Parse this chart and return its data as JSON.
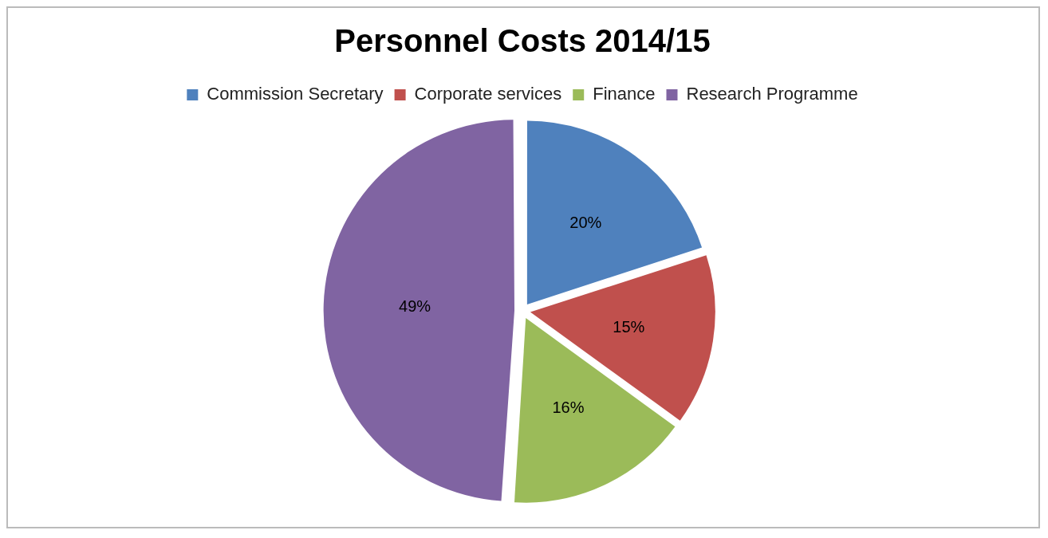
{
  "chart_data": {
    "type": "pie",
    "title": "Personnel Costs 2014/15",
    "categories": [
      "Commission Secretary",
      "Corporate services",
      "Finance",
      "Research Programme"
    ],
    "values": [
      20,
      15,
      16,
      49
    ],
    "colors": [
      "#4f81bd",
      "#c0504d",
      "#9bbb59",
      "#8064a2"
    ],
    "value_labels": [
      "20%",
      "15%",
      "16%",
      "49%"
    ],
    "legend": "top"
  }
}
